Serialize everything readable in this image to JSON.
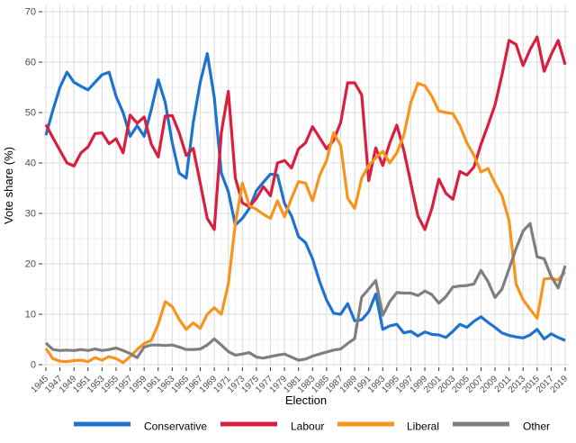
{
  "chart_data": {
    "type": "line",
    "title": "",
    "xlabel": "Election",
    "ylabel": "Vote share (%)",
    "ylim": [
      0,
      70
    ],
    "y_major_ticks": [
      0,
      10,
      20,
      30,
      40,
      50,
      60,
      70
    ],
    "y_minor_ticks": [
      5,
      15,
      25,
      35,
      45,
      55,
      65
    ],
    "x_range": [
      1945,
      2019
    ],
    "x_tick_years": [
      1945,
      1947,
      1949,
      1951,
      1953,
      1955,
      1957,
      1959,
      1961,
      1963,
      1965,
      1967,
      1969,
      1971,
      1973,
      1975,
      1977,
      1979,
      1981,
      1983,
      1985,
      1987,
      1989,
      1991,
      1993,
      1995,
      1997,
      1999,
      2001,
      2003,
      2005,
      2007,
      2009,
      2011,
      2013,
      2015,
      2017,
      2019
    ],
    "grid": "major+minor",
    "legend_position": "bottom",
    "x": [
      1945,
      1946,
      1947,
      1948,
      1949,
      1950,
      1951,
      1952,
      1953,
      1954,
      1955,
      1956,
      1957,
      1958,
      1959,
      1960,
      1961,
      1962,
      1963,
      1964,
      1965,
      1966,
      1967,
      1968,
      1969,
      1970,
      1971,
      1972,
      1973,
      1974,
      1975,
      1976,
      1977,
      1978,
      1979,
      1980,
      1981,
      1982,
      1983,
      1984,
      1985,
      1986,
      1987,
      1988,
      1989,
      1990,
      1991,
      1992,
      1993,
      1994,
      1995,
      1996,
      1997,
      1998,
      1999,
      2000,
      2001,
      2002,
      2003,
      2004,
      2005,
      2006,
      2007,
      2008,
      2009,
      2010,
      2011,
      2012,
      2013,
      2014,
      2015,
      2016,
      2017,
      2018,
      2019
    ],
    "series": [
      {
        "name": "Conservative",
        "color": "#1E73D1",
        "values": [
          45.5,
          50.5,
          55.0,
          58.0,
          56.0,
          55.2,
          54.5,
          56.0,
          57.5,
          58.0,
          53.2,
          50.0,
          45.3,
          47.4,
          45.3,
          50.5,
          56.5,
          52.0,
          44.0,
          38.0,
          37.0,
          48.0,
          56.0,
          61.7,
          53.0,
          38.0,
          34.3,
          27.7,
          29.0,
          31.0,
          34.5,
          36.2,
          37.8,
          37.6,
          32.0,
          29.5,
          25.4,
          24.2,
          21.0,
          16.5,
          12.8,
          10.2,
          10.0,
          12.1,
          8.7,
          8.9,
          10.5,
          14.0,
          7.0,
          7.7,
          8.0,
          6.3,
          6.6,
          5.7,
          6.5,
          6.0,
          5.9,
          5.4,
          6.6,
          8.0,
          7.4,
          8.6,
          9.5,
          8.4,
          7.4,
          6.3,
          5.8,
          5.5,
          5.3,
          5.9,
          7.0,
          5.1,
          6.1,
          5.4,
          4.8
        ]
      },
      {
        "name": "Labour",
        "color": "#D81F3F",
        "values": [
          47.6,
          45.0,
          42.5,
          40.0,
          39.4,
          42.0,
          43.2,
          45.8,
          46.0,
          43.8,
          44.8,
          42.0,
          49.5,
          47.9,
          49.1,
          43.8,
          41.2,
          49.3,
          49.4,
          46.0,
          41.5,
          42.9,
          36.0,
          29.0,
          26.8,
          46.0,
          54.2,
          37.0,
          32.1,
          31.3,
          33.0,
          35.3,
          33.5,
          40.0,
          40.5,
          39.0,
          42.8,
          44.0,
          47.2,
          45.0,
          42.8,
          44.5,
          48.0,
          55.9,
          55.9,
          53.5,
          36.5,
          43.0,
          39.5,
          44.0,
          47.5,
          42.5,
          36.0,
          29.5,
          26.8,
          31.0,
          36.8,
          34.0,
          32.8,
          38.3,
          37.6,
          39.2,
          43.7,
          47.5,
          51.5,
          57.5,
          64.3,
          63.5,
          59.3,
          62.5,
          65.0,
          58.2,
          61.5,
          64.3,
          59.5
        ]
      },
      {
        "name": "Liberal",
        "color": "#F7941E",
        "values": [
          3.2,
          1.2,
          0.7,
          0.6,
          0.8,
          0.9,
          0.6,
          1.4,
          0.9,
          1.6,
          1.2,
          0.4,
          1.6,
          3.0,
          4.2,
          4.8,
          8.0,
          12.5,
          11.5,
          9.0,
          7.0,
          8.3,
          7.2,
          10.0,
          11.3,
          10.0,
          16.0,
          28.0,
          36.0,
          31.5,
          30.8,
          29.8,
          29.0,
          32.5,
          29.3,
          33.0,
          36.3,
          36.0,
          32.5,
          37.5,
          40.5,
          46.0,
          43.5,
          33.0,
          31.0,
          37.0,
          39.5,
          41.0,
          42.3,
          40.0,
          42.0,
          45.5,
          52.0,
          55.8,
          55.3,
          53.2,
          50.3,
          50.0,
          49.8,
          47.4,
          44.0,
          41.5,
          38.2,
          38.9,
          36.0,
          33.5,
          28.6,
          16.0,
          12.9,
          11.0,
          9.2,
          17.0,
          17.1,
          16.8,
          18.4
        ]
      },
      {
        "name": "Other",
        "color": "#7F7F7F",
        "values": [
          4.3,
          3.0,
          2.8,
          2.9,
          2.8,
          3.0,
          2.8,
          3.1,
          2.8,
          3.0,
          3.3,
          2.8,
          2.2,
          1.4,
          3.5,
          3.9,
          3.9,
          3.8,
          3.9,
          3.5,
          3.0,
          3.0,
          3.1,
          3.9,
          5.1,
          3.9,
          2.6,
          1.9,
          2.1,
          2.4,
          1.5,
          1.3,
          1.6,
          1.9,
          2.1,
          1.5,
          0.9,
          1.1,
          1.7,
          2.1,
          2.5,
          2.9,
          3.1,
          4.2,
          5.2,
          13.4,
          15.0,
          16.7,
          9.8,
          12.5,
          14.3,
          14.2,
          14.2,
          13.7,
          14.6,
          13.9,
          12.2,
          13.5,
          15.4,
          15.6,
          15.7,
          16.0,
          18.7,
          16.5,
          13.3,
          15.0,
          19.0,
          23.0,
          26.5,
          28.0,
          21.4,
          21.0,
          17.5,
          15.2,
          19.6
        ]
      }
    ]
  },
  "legend": {
    "items": [
      {
        "label": "Conservative",
        "color": "#1E73D1"
      },
      {
        "label": "Labour",
        "color": "#D81F3F"
      },
      {
        "label": "Liberal",
        "color": "#F7941E"
      },
      {
        "label": "Other",
        "color": "#7F7F7F"
      }
    ]
  },
  "style_colors": {
    "grid_major": "#dcdcdc",
    "grid_minor": "#ededed",
    "tick": "#333333",
    "tick_text": "#4d4d4d"
  }
}
